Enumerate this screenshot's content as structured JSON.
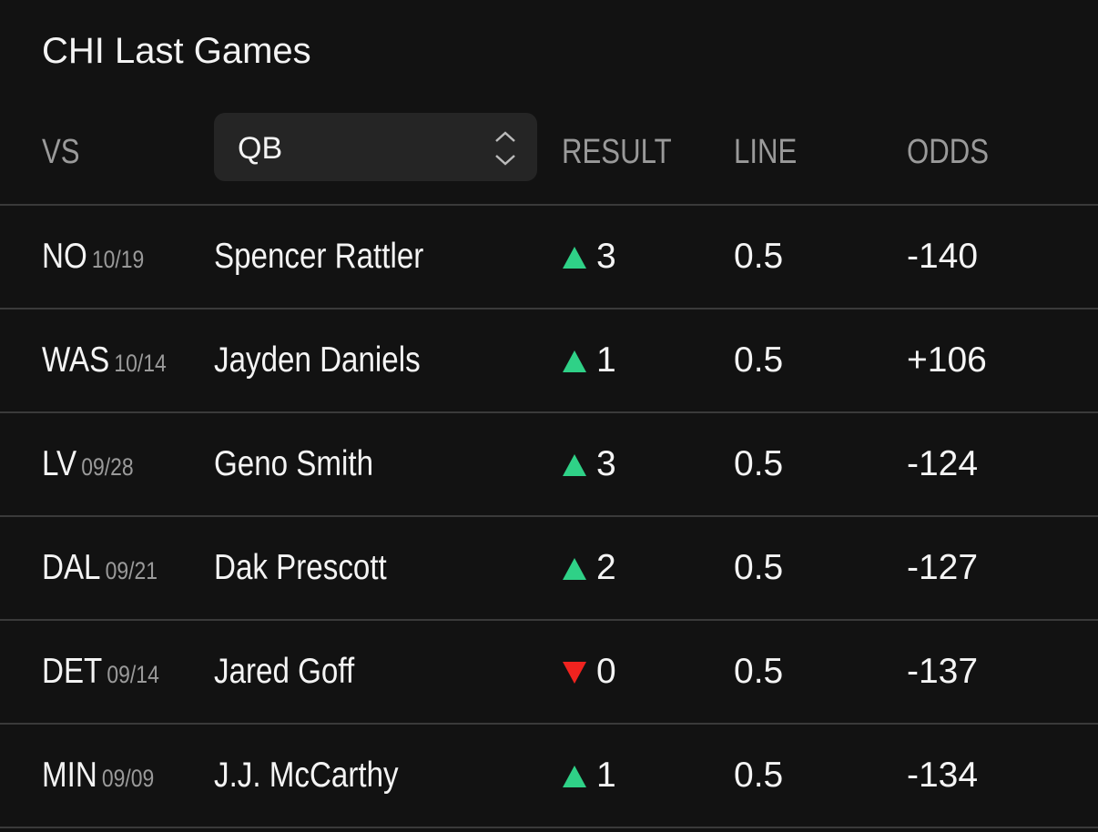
{
  "header": {
    "title": "CHI Last Games"
  },
  "table": {
    "columns": {
      "vs": "VS",
      "position": "QB",
      "result": "RESULT",
      "line": "LINE",
      "odds": "ODDS"
    },
    "rows": [
      {
        "team": "NO",
        "date": "10/19",
        "player": "Spencer Rattler",
        "trend": "up",
        "result": "3",
        "line": "0.5",
        "odds": "-140"
      },
      {
        "team": "WAS",
        "date": "10/14",
        "player": "Jayden Daniels",
        "trend": "up",
        "result": "1",
        "line": "0.5",
        "odds": "+106"
      },
      {
        "team": "LV",
        "date": "09/28",
        "player": "Geno Smith",
        "trend": "up",
        "result": "3",
        "line": "0.5",
        "odds": "-124"
      },
      {
        "team": "DAL",
        "date": "09/21",
        "player": "Dak Prescott",
        "trend": "up",
        "result": "2",
        "line": "0.5",
        "odds": "-127"
      },
      {
        "team": "DET",
        "date": "09/14",
        "player": "Jared Goff",
        "trend": "down",
        "result": "0",
        "line": "0.5",
        "odds": "-137"
      },
      {
        "team": "MIN",
        "date": "09/09",
        "player": "J.J. McCarthy",
        "trend": "up",
        "result": "1",
        "line": "0.5",
        "odds": "-134"
      }
    ]
  }
}
